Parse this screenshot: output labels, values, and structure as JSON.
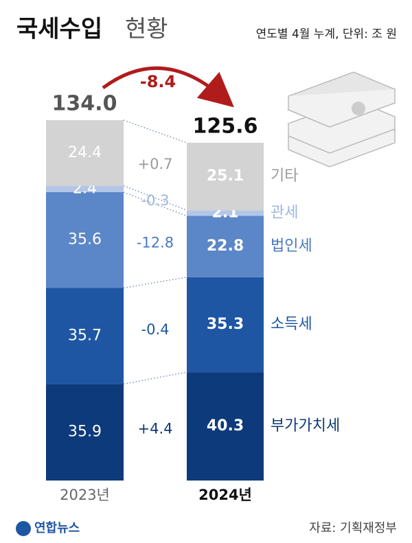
{
  "chart_data": {
    "type": "stacked-bar",
    "title_parts": [
      "국세수입",
      "현황"
    ],
    "note": "연도별 4월 누계, 단위: 조 원",
    "categories": [
      "2023년",
      "2024년"
    ],
    "series": [
      {
        "name": "부가가치세",
        "color": "#0d3a7a",
        "label_color": "#0d3a7a",
        "values": [
          35.9,
          40.3
        ]
      },
      {
        "name": "소득세",
        "color": "#1f56a4",
        "label_color": "#1f56a4",
        "values": [
          35.7,
          35.3
        ]
      },
      {
        "name": "법인세",
        "color": "#5b86c8",
        "label_color": "#4a78bf",
        "values": [
          35.6,
          22.8
        ]
      },
      {
        "name": "관세",
        "color": "#b3c6e6",
        "label_color": "#9fb6de",
        "values": [
          2.4,
          2.1
        ]
      },
      {
        "name": "기타",
        "color": "#d3d3d3",
        "label_color": "#9a9a9a",
        "values": [
          24.4,
          25.1
        ]
      }
    ],
    "changes": [
      {
        "value": 4.4,
        "label": "+4.4"
      },
      -0.4,
      -12.8,
      -0.3,
      {
        "value": 0.7,
        "label": "+0.7"
      }
    ],
    "totals": [
      {
        "value": 134,
        "label": "134.0"
      },
      125.6
    ],
    "total_change": -8.4,
    "source": "자료: 기획재정부",
    "logo": "연합뉴스"
  }
}
